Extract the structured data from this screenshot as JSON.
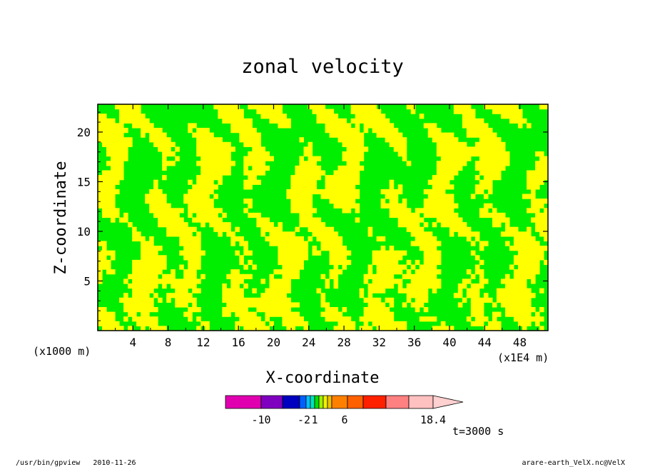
{
  "chart_data": {
    "type": "heatmap",
    "title": "zonal velocity",
    "xlabel": "X-coordinate",
    "ylabel": "Z-coordinate",
    "x_unit": "(x1E4 m)",
    "y_unit": "(x1000 m)",
    "x_ticks": [
      "4",
      "8",
      "12",
      "16",
      "20",
      "24",
      "28",
      "32",
      "36",
      "40",
      "44",
      "48"
    ],
    "y_ticks": [
      "5",
      "10",
      "15",
      "20"
    ],
    "xlim": [
      0,
      51.2
    ],
    "ylim": [
      0,
      22.8
    ],
    "colorbar": {
      "colors": [
        "#e000b0",
        "#8000c0",
        "#0000c0",
        "#0060ff",
        "#00c0ff",
        "#00e0c0",
        "#00e000",
        "#a0f000",
        "#f0f000",
        "#f0c000",
        "#ff8000",
        "#ff6000",
        "#ff2000",
        "#ff8080",
        "#ffc0c0",
        "#ffd0d0"
      ],
      "tick_labels": [
        "-10",
        "-2",
        "1",
        "6",
        "18.4"
      ]
    },
    "field_colors": {
      "low": "#00ee00",
      "high": "#ffff00"
    },
    "time_label": "t=3000 s"
  },
  "footer": {
    "left": "/usr/bin/gpview   2010-11-26",
    "right": "arare-earth_VelX.nc@VelX"
  }
}
